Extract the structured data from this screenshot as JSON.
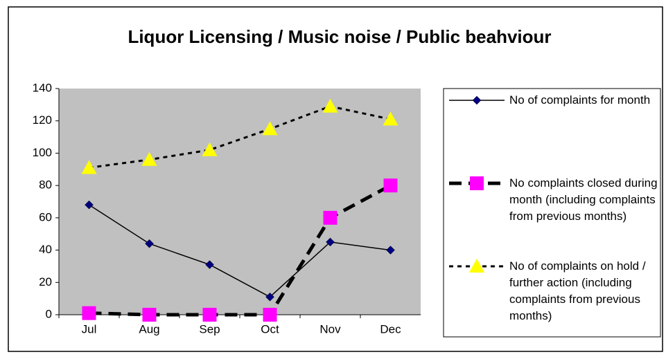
{
  "chart_data": {
    "type": "line",
    "title": "Liquor Licensing / Music noise / Public beahviour",
    "categories": [
      "Jul",
      "Aug",
      "Sep",
      "Oct",
      "Nov",
      "Dec"
    ],
    "series": [
      {
        "name": "No of complaints for month",
        "color": "#000080",
        "line_color": "#000000",
        "line_style": "solid",
        "marker": "diamond",
        "values": [
          68,
          44,
          31,
          11,
          45,
          40
        ]
      },
      {
        "name": "No complaints closed during month (including complaints from previous months)",
        "color": "#ff00ff",
        "line_color": "#000000",
        "line_style": "dashed",
        "marker": "square",
        "values": [
          1,
          0,
          0,
          0,
          60,
          80
        ]
      },
      {
        "name": "No of complaints on hold / further action (including complaints from previous months)",
        "color": "#ffff00",
        "line_color": "#000000",
        "line_style": "dotted",
        "marker": "triangle",
        "values": [
          91,
          96,
          102,
          115,
          129,
          121
        ]
      }
    ],
    "ylim": [
      0,
      140
    ],
    "yticks": [
      0,
      20,
      40,
      60,
      80,
      100,
      120,
      140
    ],
    "grid": false,
    "legend": "right"
  }
}
